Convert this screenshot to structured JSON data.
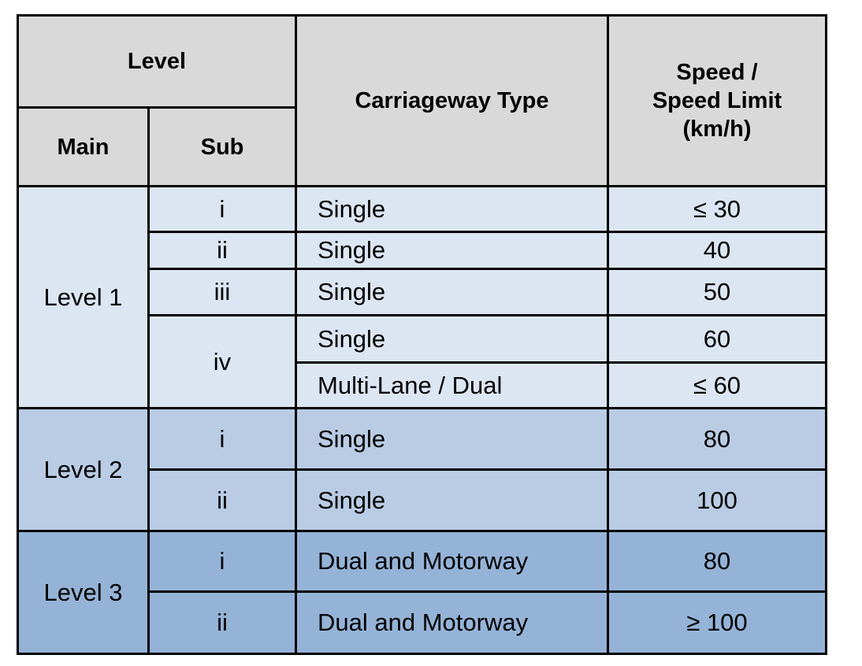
{
  "header": {
    "level": "Level",
    "main": "Main",
    "sub": "Sub",
    "carriageway_type": "Carriageway Type",
    "speed_line1": "Speed /",
    "speed_line2": "Speed Limit",
    "speed_line3": "(km/h)"
  },
  "levels": [
    {
      "main": "Level 1",
      "rows": [
        {
          "sub": "i",
          "type": "Single",
          "speed": "≤ 30"
        },
        {
          "sub": "ii",
          "type": "Single",
          "speed": "40"
        },
        {
          "sub": "iii",
          "type": "Single",
          "speed": "50"
        },
        {
          "sub": "iv",
          "type": "Single",
          "speed": "60"
        },
        {
          "sub": "",
          "type": "Multi-Lane / Dual",
          "speed": "≤ 60"
        }
      ]
    },
    {
      "main": "Level 2",
      "rows": [
        {
          "sub": "i",
          "type": "Single",
          "speed": "80"
        },
        {
          "sub": "ii",
          "type": "Single",
          "speed": "100"
        }
      ]
    },
    {
      "main": "Level 3",
      "rows": [
        {
          "sub": "i",
          "type": "Dual and Motorway",
          "speed": "80"
        },
        {
          "sub": "ii",
          "type": "Dual and Motorway",
          "speed": "≥ 100"
        }
      ]
    }
  ],
  "colors": {
    "header_bg": "#d9d9d9",
    "level1_bg": "#dce6f2",
    "level2_bg": "#b9cce4",
    "level3_bg": "#95b3d7",
    "border": "#000000"
  }
}
